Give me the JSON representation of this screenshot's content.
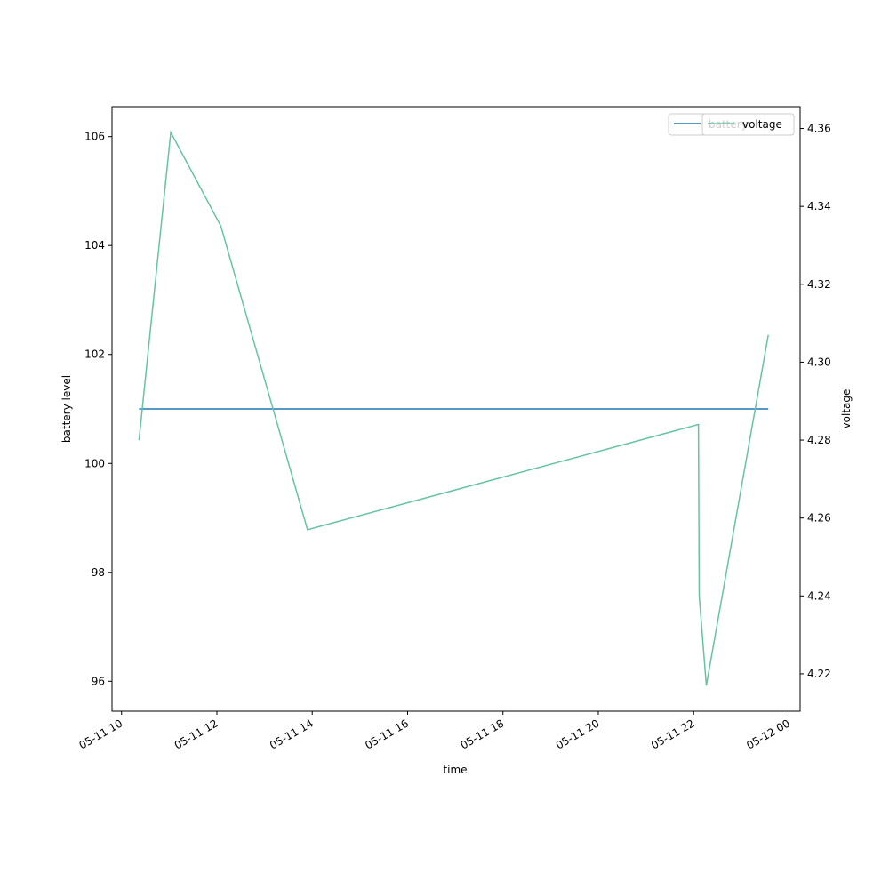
{
  "chart_data": {
    "type": "line",
    "title": "",
    "xlabel": "time",
    "ylabel_left": "battery level",
    "ylabel_right": "voltage",
    "x_ticks": [
      "05-11 10",
      "05-11 12",
      "05-11 14",
      "05-11 16",
      "05-11 18",
      "05-11 20",
      "05-11 22",
      "05-12 00"
    ],
    "left_axis": {
      "ylim": [
        95.45,
        106.55
      ],
      "ticks": [
        "96",
        "98",
        "100",
        "102",
        "104",
        "106"
      ]
    },
    "right_axis": {
      "ylim": [
        4.2104,
        4.3656
      ],
      "ticks": [
        "4.22",
        "4.24",
        "4.26",
        "4.28",
        "4.30",
        "4.32",
        "4.34",
        "4.36"
      ]
    },
    "xlim": [
      "2024-05-11 09:48",
      "2024-05-12 00:14"
    ],
    "series": [
      {
        "name": "battery",
        "axis": "left",
        "color": "#1f77b4",
        "points": [
          {
            "x": "2024-05-11 10:22",
            "y": 101
          },
          {
            "x": "2024-05-11 23:34",
            "y": 101
          }
        ]
      },
      {
        "name": "voltage",
        "axis": "right",
        "color": "#66c2a5",
        "points": [
          {
            "x": "2024-05-11 10:22",
            "y": 4.28
          },
          {
            "x": "2024-05-11 11:02",
            "y": 4.359
          },
          {
            "x": "2024-05-11 12:05",
            "y": 4.335
          },
          {
            "x": "2024-05-11 13:54",
            "y": 4.257
          },
          {
            "x": "2024-05-11 22:06",
            "y": 4.284
          },
          {
            "x": "2024-05-11 22:07",
            "y": 4.24
          },
          {
            "x": "2024-05-11 22:16",
            "y": 4.217
          },
          {
            "x": "2024-05-11 23:34",
            "y": 4.307
          }
        ]
      }
    ],
    "legend_left": {
      "label": "battery",
      "placement": "upper-right"
    },
    "legend_right": {
      "label": "voltage",
      "placement": "upper-right"
    },
    "grid": false
  }
}
